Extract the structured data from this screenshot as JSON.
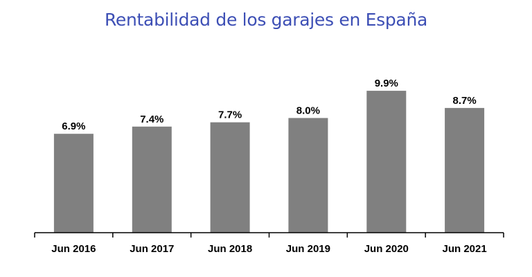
{
  "chart_data": {
    "type": "bar",
    "title": "Rentabilidad de los garajes en España",
    "categories": [
      "Jun 2016",
      "Jun 2017",
      "Jun 2018",
      "Jun 2019",
      "Jun 2020",
      "Jun 2021"
    ],
    "values": [
      6.9,
      7.4,
      7.7,
      8.0,
      9.9,
      8.7
    ],
    "data_labels": [
      "6.9%",
      "7.4%",
      "7.7%",
      "8.0%",
      "9.9%",
      "8.7%"
    ],
    "xlabel": "",
    "ylabel": "",
    "ylim": [
      0,
      10.5
    ],
    "grid": false,
    "legend": "none",
    "bar_color": "#808080",
    "title_color": "#3d4fb5"
  }
}
